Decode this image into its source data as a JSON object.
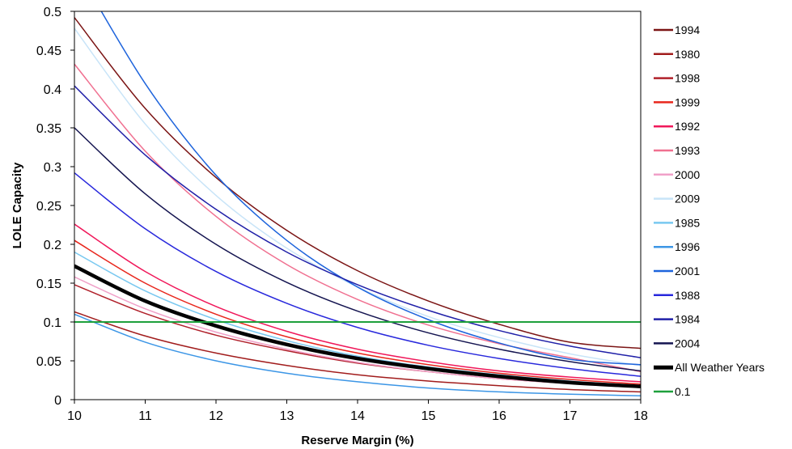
{
  "chart_data": {
    "type": "line",
    "title": "",
    "xlabel": "Reserve Margin (%)",
    "ylabel": "LOLE Capacity",
    "xlim": [
      10,
      18
    ],
    "ylim": [
      0,
      0.5
    ],
    "x_ticks": [
      "10",
      "11",
      "12",
      "13",
      "14",
      "15",
      "16",
      "17",
      "18"
    ],
    "y_ticks": [
      "0",
      "0.05",
      "0.1",
      "0.15",
      "0.2",
      "0.25",
      "0.3",
      "0.35",
      "0.4",
      "0.45",
      "0.5"
    ],
    "grid": false,
    "legend_position": "right",
    "x": [
      10,
      11,
      12,
      13,
      14,
      15,
      16,
      17,
      18
    ],
    "series": [
      {
        "name": "1994",
        "color": "#7b1414",
        "width": 1.5,
        "values": [
          0.492,
          0.375,
          0.286,
          0.218,
          0.166,
          0.127,
          0.097,
          0.074,
          0.066
        ]
      },
      {
        "name": "1980",
        "color": "#a11c1c",
        "width": 1.5,
        "values": [
          0.113,
          0.082,
          0.06,
          0.044,
          0.032,
          0.024,
          0.018,
          0.013,
          0.01
        ]
      },
      {
        "name": "1998",
        "color": "#b0202a",
        "width": 1.5,
        "values": [
          0.148,
          0.111,
          0.083,
          0.063,
          0.047,
          0.036,
          0.027,
          0.021,
          0.016
        ]
      },
      {
        "name": "1999",
        "color": "#e8261c",
        "width": 1.5,
        "values": [
          0.205,
          0.15,
          0.11,
          0.081,
          0.06,
          0.045,
          0.034,
          0.026,
          0.02
        ]
      },
      {
        "name": "1992",
        "color": "#f0185a",
        "width": 1.5,
        "values": [
          0.226,
          0.165,
          0.12,
          0.088,
          0.065,
          0.049,
          0.037,
          0.029,
          0.023
        ]
      },
      {
        "name": "1993",
        "color": "#f07090",
        "width": 1.5,
        "values": [
          0.432,
          0.32,
          0.236,
          0.174,
          0.129,
          0.096,
          0.072,
          0.054,
          0.036
        ]
      },
      {
        "name": "2000",
        "color": "#f0a0c8",
        "width": 1.5,
        "values": [
          0.158,
          0.117,
          0.087,
          0.065,
          0.048,
          0.036,
          0.027,
          0.021,
          0.017
        ]
      },
      {
        "name": "2009",
        "color": "#c8e4f8",
        "width": 1.5,
        "values": [
          0.478,
          0.355,
          0.263,
          0.195,
          0.145,
          0.107,
          0.08,
          0.059,
          0.044
        ]
      },
      {
        "name": "1985",
        "color": "#78c8f0",
        "width": 1.5,
        "values": [
          0.19,
          0.14,
          0.103,
          0.076,
          0.056,
          0.042,
          0.032,
          0.024,
          0.018
        ]
      },
      {
        "name": "1996",
        "color": "#3c96e6",
        "width": 1.5,
        "values": [
          0.11,
          0.074,
          0.05,
          0.034,
          0.023,
          0.015,
          0.01,
          0.007,
          0.005
        ]
      },
      {
        "name": "2001",
        "color": "#1e64dc",
        "width": 1.5,
        "values": [
          0.56,
          0.407,
          0.289,
          0.205,
          0.145,
          0.103,
          0.073,
          0.052,
          0.045
        ]
      },
      {
        "name": "1988",
        "color": "#2828dc",
        "width": 1.5,
        "values": [
          0.292,
          0.22,
          0.165,
          0.124,
          0.093,
          0.07,
          0.053,
          0.04,
          0.03
        ]
      },
      {
        "name": "1984",
        "color": "#2020a8",
        "width": 1.5,
        "values": [
          0.404,
          0.315,
          0.245,
          0.19,
          0.148,
          0.115,
          0.089,
          0.069,
          0.054
        ]
      },
      {
        "name": "2004",
        "color": "#141450",
        "width": 1.5,
        "values": [
          0.35,
          0.265,
          0.2,
          0.151,
          0.114,
          0.086,
          0.065,
          0.049,
          0.037
        ]
      },
      {
        "name": "All Weather Years",
        "color": "#000000",
        "width": 4.5,
        "values": [
          0.172,
          0.127,
          0.095,
          0.071,
          0.053,
          0.04,
          0.03,
          0.022,
          0.017
        ]
      },
      {
        "name": "0.1",
        "color": "#1ea03c",
        "width": 2,
        "values": [
          0.1,
          0.1,
          0.1,
          0.1,
          0.1,
          0.1,
          0.1,
          0.1,
          0.1
        ]
      }
    ]
  }
}
